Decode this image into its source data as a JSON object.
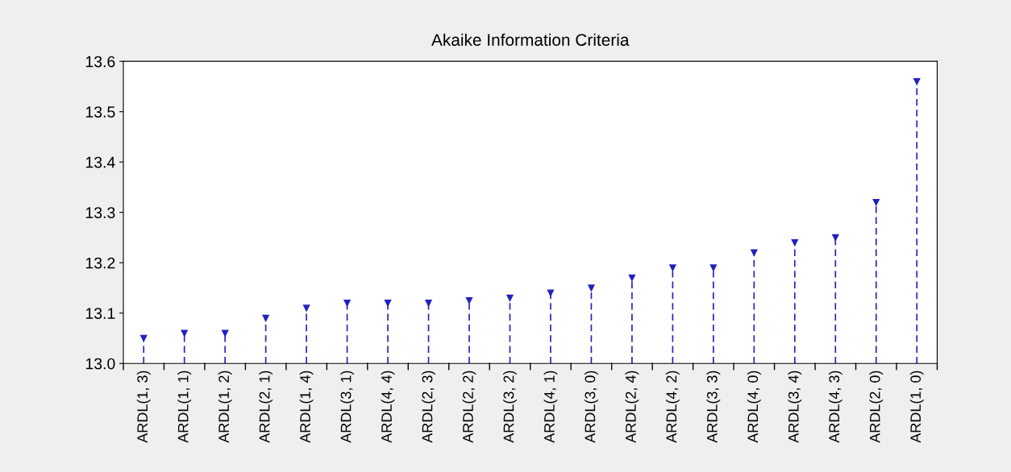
{
  "chart_data": {
    "type": "lollipop",
    "title": "Akaike Information Criteria",
    "categories": [
      "ARDL(1, 3)",
      "ARDL(1, 1)",
      "ARDL(1, 2)",
      "ARDL(2, 1)",
      "ARDL(1, 4)",
      "ARDL(3, 1)",
      "ARDL(4, 4)",
      "ARDL(2, 3)",
      "ARDL(2, 2)",
      "ARDL(3, 2)",
      "ARDL(4, 1)",
      "ARDL(3, 0)",
      "ARDL(2, 4)",
      "ARDL(4, 2)",
      "ARDL(3, 3)",
      "ARDL(4, 0)",
      "ARDL(3, 4)",
      "ARDL(4, 3)",
      "ARDL(2, 0)",
      "ARDL(1, 0)"
    ],
    "values": [
      13.05,
      13.06,
      13.06,
      13.09,
      13.11,
      13.12,
      13.12,
      13.12,
      13.125,
      13.13,
      13.14,
      13.15,
      13.17,
      13.19,
      13.19,
      13.22,
      13.24,
      13.25,
      13.32,
      13.56
    ],
    "color": "#2222bb",
    "marker": "triangle",
    "line_style": "dashed",
    "ylim": [
      13.0,
      13.6
    ],
    "yticks": [
      {
        "value": 13.0,
        "label": "13.0"
      },
      {
        "value": 13.1,
        "label": "13.1"
      },
      {
        "value": 13.2,
        "label": "13.2"
      },
      {
        "value": 13.3,
        "label": "13.3"
      },
      {
        "value": 13.4,
        "label": "13.4"
      },
      {
        "value": 13.5,
        "label": "13.5"
      },
      {
        "value": 13.6,
        "label": "13.6"
      }
    ],
    "grid": false,
    "legend": false
  }
}
